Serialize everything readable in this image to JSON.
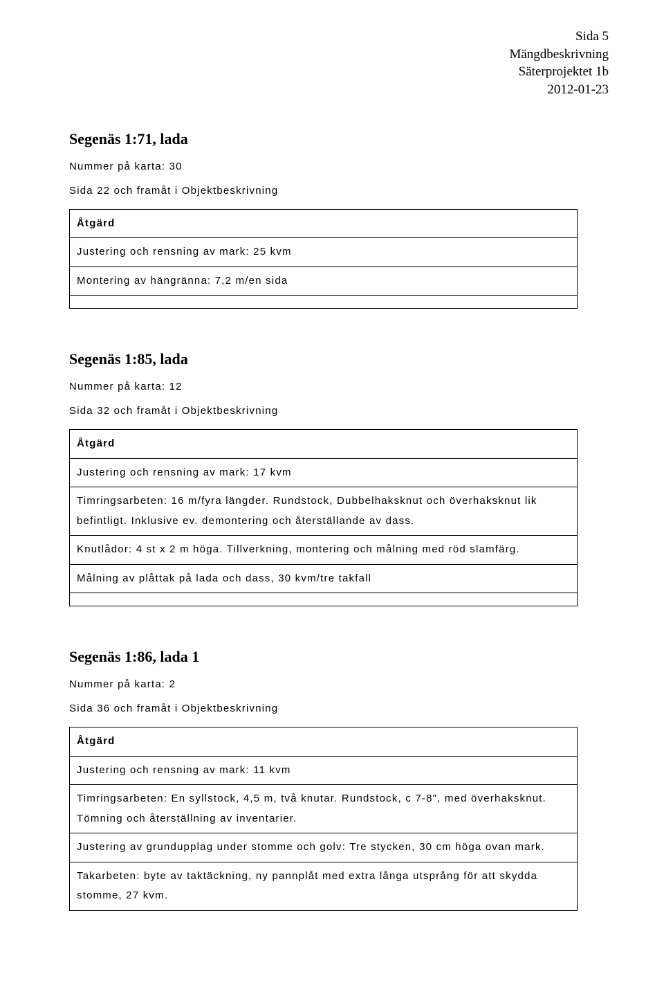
{
  "header": {
    "page_label": "Sida 5",
    "doc_title": "Mängdbeskrivning",
    "project": "Säterprojektet 1b",
    "date": "2012-01-23"
  },
  "sections": [
    {
      "title": "Segenäs 1:71, lada",
      "map_no": "Nummer på karta: 30",
      "page_ref": "Sida 22 och framåt i Objektbeskrivning",
      "action_header": "Åtgärd",
      "rows": [
        "Justering och rensning av mark: 25 kvm",
        "Montering av hängränna: 7,2 m/en sida"
      ],
      "trailing_spacer": true
    },
    {
      "title": "Segenäs 1:85, lada",
      "map_no": "Nummer på karta: 12",
      "page_ref": "Sida 32 och framåt i Objektbeskrivning",
      "action_header": "Åtgärd",
      "rows": [
        "Justering och rensning av mark: 17 kvm",
        "Timringsarbeten: 16 m/fyra längder. Rundstock, Dubbelhaksknut och överhaksknut lik befintligt. Inklusive ev. demontering och återställande av dass.",
        "Knutlådor: 4 st x 2 m höga. Tillverkning, montering och målning med röd slamfärg.",
        "Målning av plåttak på lada och dass, 30 kvm/tre takfall"
      ],
      "trailing_spacer": true
    },
    {
      "title": "Segenäs 1:86, lada 1",
      "map_no": "Nummer på karta: 2",
      "page_ref": "Sida 36 och framåt i Objektbeskrivning",
      "action_header": "Åtgärd",
      "rows": [
        "Justering och rensning av mark: 11 kvm",
        "Timringsarbeten: En syllstock, 4,5 m, två knutar. Rundstock, c 7-8\", med överhaksknut. Tömning och återställning av inventarier.",
        "Justering av grundupplag under stomme och golv: Tre stycken, 30 cm höga ovan mark.",
        "Takarbeten: byte av taktäckning, ny pannplåt med extra långa utsprång för att skydda stomme, 27 kvm."
      ],
      "trailing_spacer": false
    }
  ]
}
